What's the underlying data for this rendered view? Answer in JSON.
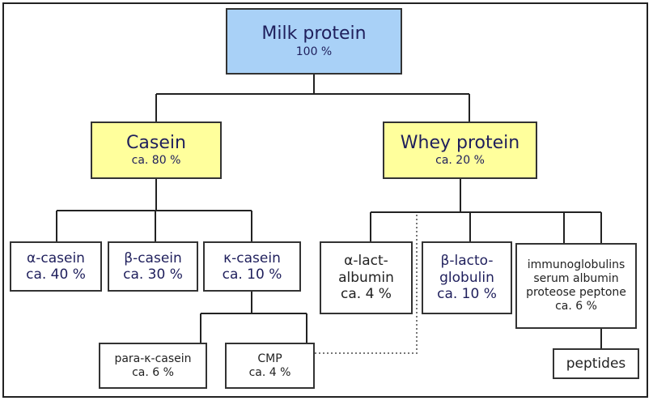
{
  "colors": {
    "root_fill": "#a9d1f7",
    "group_fill": "#ffff9c",
    "text": "#1f1f5c",
    "lines": "#222222"
  },
  "root": {
    "title": "Milk protein",
    "value": "100 %"
  },
  "casein": {
    "title": "Casein",
    "value": "ca. 80 %",
    "children": [
      {
        "title": "α-casein",
        "value": "ca. 40 %"
      },
      {
        "title": "β-casein",
        "value": "ca. 30 %"
      },
      {
        "title": "κ-casein",
        "value": "ca. 10 %"
      }
    ],
    "kappa_children": [
      {
        "title": "para-κ-casein",
        "value": "ca. 6 %"
      },
      {
        "title": "CMP",
        "value": "ca. 4 %"
      }
    ]
  },
  "whey": {
    "title": "Whey protein",
    "value": "ca. 20 %",
    "children": [
      {
        "line1": "α-lact-",
        "line2": "albumin",
        "value": "ca. 4 %"
      },
      {
        "line1": "β-lacto-",
        "line2": "globulin",
        "value": "ca. 10 %"
      },
      {
        "line1": "immunoglobulins",
        "line2": "serum albumin",
        "line3": "proteose peptone",
        "value": "ca. 6 %"
      }
    ],
    "peptides": "peptides"
  }
}
